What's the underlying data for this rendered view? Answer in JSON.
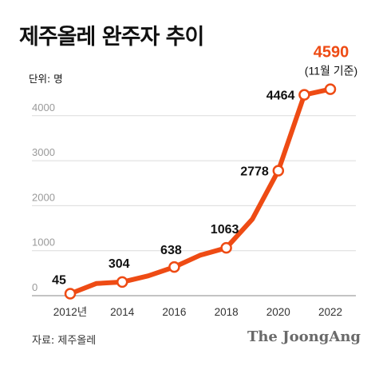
{
  "title": "제주올레 완주자 추이",
  "unit_label": "단위: 명",
  "source": "자료: 제주올레",
  "brand": "The JoongAng",
  "colors": {
    "line": "#ee4b14",
    "accent": "#ee4b14",
    "grid": "#dcdcdc"
  },
  "chart_data": {
    "type": "line",
    "x": [
      2012,
      2013,
      2014,
      2015,
      2016,
      2017,
      2018,
      2019,
      2020,
      2021,
      2022
    ],
    "values": [
      45,
      270,
      304,
      440,
      638,
      900,
      1063,
      1700,
      2778,
      4464,
      4590
    ],
    "point_markers": [
      2012,
      2014,
      2016,
      2018,
      2020,
      2021,
      2022
    ],
    "x_ticks": [
      "2012년",
      "2014",
      "2016",
      "2018",
      "2020",
      "2022"
    ],
    "x_tick_values": [
      2012,
      2014,
      2016,
      2018,
      2020,
      2022
    ],
    "y_ticks": [
      0,
      1000,
      2000,
      3000,
      4000
    ],
    "ylim": [
      0,
      4600
    ],
    "grid": "horizontal",
    "data_labels": [
      {
        "x": 2012,
        "text": "45"
      },
      {
        "x": 2014,
        "text": "304"
      },
      {
        "x": 2016,
        "text": "638"
      },
      {
        "x": 2018,
        "text": "1063"
      },
      {
        "x": 2020,
        "text": "2778"
      },
      {
        "x": 2021,
        "text": "4464"
      }
    ],
    "highlight": {
      "x": 2022,
      "text": "4590",
      "note": "(11월 기준)"
    }
  }
}
